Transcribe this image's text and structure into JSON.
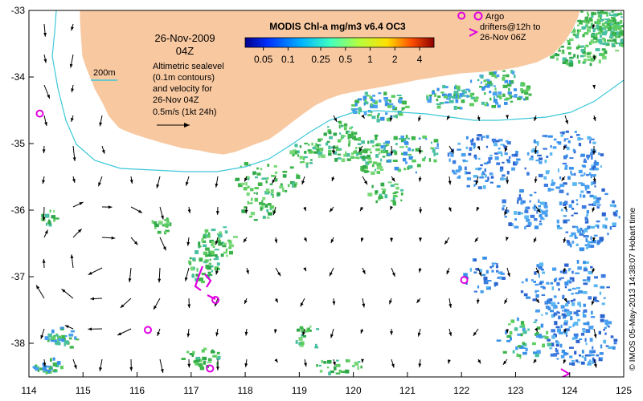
{
  "map": {
    "date": "26-Nov-2009",
    "time": "04Z",
    "colorbar": {
      "title": "MODIS Chl-a mg/m3 v6.4 OC3",
      "ticks": [
        "0.05",
        "0.1",
        "0.25",
        "0.5",
        "1",
        "2",
        "4"
      ]
    },
    "isobath_label": "200m",
    "altimetry_note": [
      "Altimetric sealevel",
      "(0.1m contours)",
      "and velocity for",
      "26-Nov 04Z"
    ],
    "velocity_scale": "0.5m/s (1kt 24h)",
    "argo_note": [
      "Argo",
      "drifters@12h to",
      "26-Nov 06Z"
    ],
    "credit": "© IMOS 05-May-2013 14:38:07 Hobart time",
    "x_ticks": [
      "114",
      "115",
      "116",
      "117",
      "118",
      "119",
      "120",
      "121",
      "122",
      "123",
      "124",
      "125"
    ],
    "y_ticks": [
      "-33",
      "-34",
      "-35",
      "-36",
      "-37",
      "-38"
    ],
    "colors": {
      "land": "#f8c8a0",
      "isobath": "#3cc8d8",
      "argo": "#e000e0",
      "arrow": "#000000",
      "chl_green": "#3cb44a",
      "chl_blue": "#3c7ce0"
    },
    "argo_floats": [
      {
        "lon": 114.2,
        "lat": -34.55
      },
      {
        "lon": 116.2,
        "lat": -37.8
      },
      {
        "lon": 117.35,
        "lat": -38.38
      },
      {
        "lon": 117.45,
        "lat": -37.35
      },
      {
        "lon": 122.05,
        "lat": -37.05
      },
      {
        "lon": 122.0,
        "lat": -33.08
      }
    ]
  }
}
